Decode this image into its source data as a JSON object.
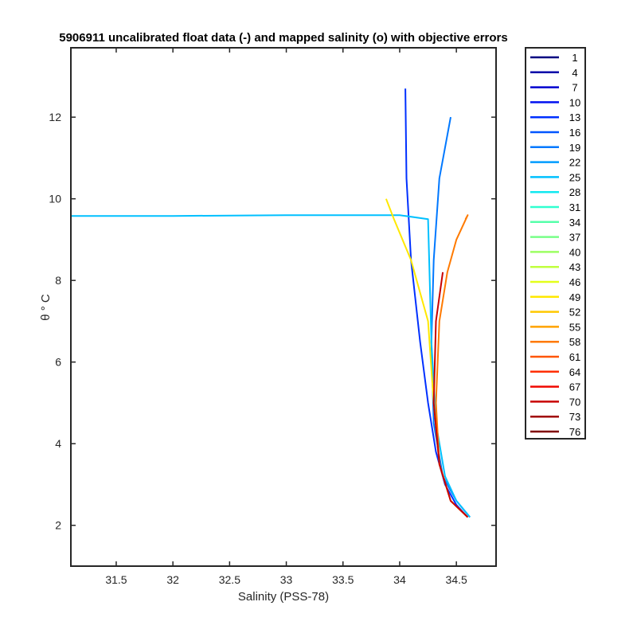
{
  "chart_data": {
    "type": "line",
    "title": "5906911 uncalibrated float data (-) and mapped salinity (o) with objective errors",
    "xlabel": "Salinity (PSS-78)",
    "ylabel": "θ ° C",
    "xlim": [
      31.1,
      34.85
    ],
    "ylim": [
      1.0,
      13.7
    ],
    "xticks": [
      "31.5",
      "32",
      "32.5",
      "33",
      "33.5",
      "34",
      "34.5"
    ],
    "xtick_values": [
      31.5,
      32,
      32.5,
      33,
      33.5,
      34,
      34.5
    ],
    "yticks": [
      "2",
      "4",
      "6",
      "8",
      "10",
      "12"
    ],
    "ytick_values": [
      2,
      4,
      6,
      8,
      10,
      12
    ],
    "grid": false,
    "legend_position": "outside-right",
    "series": [
      {
        "name": "1",
        "color": "#000080"
      },
      {
        "name": "4",
        "color": "#0000a8"
      },
      {
        "name": "7",
        "color": "#0000cf"
      },
      {
        "name": "10",
        "color": "#0010f0"
      },
      {
        "name": "13",
        "color": "#0030ff"
      },
      {
        "name": "16",
        "color": "#0055ff"
      },
      {
        "name": "19",
        "color": "#0078ff"
      },
      {
        "name": "22",
        "color": "#009cff"
      },
      {
        "name": "25",
        "color": "#00c0ff"
      },
      {
        "name": "28",
        "color": "#10e8f0"
      },
      {
        "name": "31",
        "color": "#30ffd0"
      },
      {
        "name": "34",
        "color": "#55ffaa"
      },
      {
        "name": "37",
        "color": "#78ff88"
      },
      {
        "name": "40",
        "color": "#9cff62"
      },
      {
        "name": "43",
        "color": "#c0ff3e"
      },
      {
        "name": "46",
        "color": "#e4ff1a"
      },
      {
        "name": "49",
        "color": "#ffe800"
      },
      {
        "name": "52",
        "color": "#ffc800"
      },
      {
        "name": "55",
        "color": "#ffa200"
      },
      {
        "name": "58",
        "color": "#ff7a00"
      },
      {
        "name": "61",
        "color": "#ff5500"
      },
      {
        "name": "64",
        "color": "#ff2e00"
      },
      {
        "name": "67",
        "color": "#f00800"
      },
      {
        "name": "70",
        "color": "#c80000"
      },
      {
        "name": "73",
        "color": "#a00000"
      },
      {
        "name": "76",
        "color": "#800000"
      }
    ],
    "key_profiles": [
      {
        "color": "#0030ff",
        "x": [
          34.6,
          34.5,
          34.4,
          34.32,
          34.25,
          34.18,
          34.1,
          34.06,
          34.05
        ],
        "y": [
          2.2,
          2.5,
          3.0,
          3.8,
          5.0,
          6.5,
          8.5,
          10.5,
          12.7
        ]
      },
      {
        "color": "#0078ff",
        "x": [
          34.62,
          34.5,
          34.38,
          34.3,
          34.28,
          34.3,
          34.35,
          34.45
        ],
        "y": [
          2.2,
          2.6,
          3.2,
          4.5,
          6.5,
          8.5,
          10.5,
          12.0
        ]
      },
      {
        "color": "#00c0ff",
        "x": [
          34.62,
          34.5,
          34.4,
          34.32,
          34.28,
          34.25,
          34.0,
          33.0,
          32.0,
          31.1
        ],
        "y": [
          2.2,
          2.6,
          3.2,
          4.5,
          6.5,
          9.5,
          9.6,
          9.6,
          9.58,
          9.58
        ]
      },
      {
        "color": "#ffe800",
        "x": [
          34.6,
          34.45,
          34.35,
          34.3,
          34.25,
          34.1,
          33.95,
          33.88
        ],
        "y": [
          2.2,
          2.6,
          3.5,
          5.0,
          7.0,
          8.5,
          9.5,
          10.0
        ]
      },
      {
        "color": "#ff7a00",
        "x": [
          34.6,
          34.45,
          34.35,
          34.32,
          34.35,
          34.42,
          34.5,
          34.6,
          34.58
        ],
        "y": [
          2.2,
          2.6,
          3.5,
          5.0,
          7.0,
          8.2,
          9.0,
          9.6,
          9.5
        ]
      },
      {
        "color": "#c80000",
        "x": [
          34.6,
          34.45,
          34.35,
          34.3,
          34.32,
          34.38
        ],
        "y": [
          2.2,
          2.6,
          3.5,
          5.0,
          7.0,
          8.2
        ]
      }
    ]
  }
}
